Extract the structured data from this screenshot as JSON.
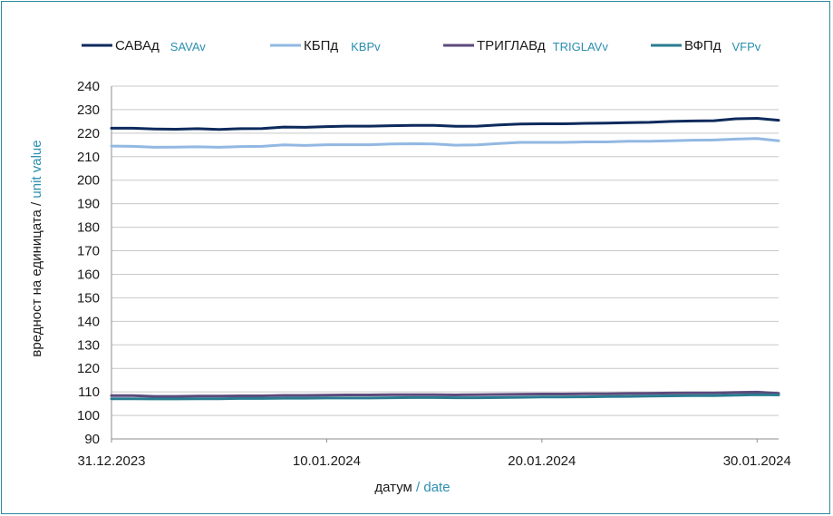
{
  "chart_data": {
    "type": "line",
    "xlabel": {
      "primary": "датум",
      "separator": " / ",
      "secondary": "date"
    },
    "ylabel": {
      "primary": "вредност на единицата",
      "separator": " / ",
      "secondary": "unit value"
    },
    "ylim": [
      90,
      240
    ],
    "yticks": [
      90,
      100,
      110,
      120,
      130,
      140,
      150,
      160,
      170,
      180,
      190,
      200,
      210,
      220,
      230,
      240
    ],
    "xlim": [
      "31.12.2023",
      "31.01.2024"
    ],
    "xticks": [
      "31.12.2023",
      "10.01.2024",
      "20.01.2024",
      "30.01.2024"
    ],
    "grid": "horizontal",
    "legend": "top",
    "x": [
      "31.12.2023",
      "01.01.2024",
      "02.01.2024",
      "03.01.2024",
      "04.01.2024",
      "05.01.2024",
      "06.01.2024",
      "07.01.2024",
      "08.01.2024",
      "09.01.2024",
      "10.01.2024",
      "11.01.2024",
      "12.01.2024",
      "13.01.2024",
      "14.01.2024",
      "15.01.2024",
      "16.01.2024",
      "17.01.2024",
      "18.01.2024",
      "19.01.2024",
      "20.01.2024",
      "21.01.2024",
      "22.01.2024",
      "23.01.2024",
      "24.01.2024",
      "25.01.2024",
      "26.01.2024",
      "27.01.2024",
      "28.01.2024",
      "29.01.2024",
      "30.01.2024",
      "31.01.2024"
    ],
    "series": [
      {
        "name": "САВАд",
        "name_en": "SAVAv",
        "color": "#0d2a5c",
        "values": [
          222.1,
          222.1,
          221.8,
          221.7,
          221.9,
          221.6,
          221.9,
          222.0,
          222.6,
          222.5,
          222.8,
          223.0,
          223.0,
          223.2,
          223.3,
          223.3,
          222.9,
          223.0,
          223.5,
          223.9,
          224.0,
          224.0,
          224.2,
          224.3,
          224.5,
          224.6,
          225.0,
          225.2,
          225.3,
          226.1,
          226.3,
          225.5
        ]
      },
      {
        "name": "КБПд",
        "name_en": "KBPv",
        "color": "#92b8e2",
        "values": [
          214.5,
          214.4,
          214.0,
          214.1,
          214.2,
          214.0,
          214.3,
          214.4,
          215.0,
          214.8,
          215.1,
          215.1,
          215.1,
          215.4,
          215.5,
          215.4,
          214.9,
          215.0,
          215.6,
          216.1,
          216.1,
          216.1,
          216.3,
          216.3,
          216.6,
          216.6,
          216.8,
          217.0,
          217.1,
          217.5,
          217.7,
          216.8
        ]
      },
      {
        "name": "ТРИГЛАВд",
        "name_en": "TRIGLAVv",
        "color": "#5c4a7c",
        "values": [
          108.4,
          108.4,
          108.1,
          108.1,
          108.2,
          108.2,
          108.3,
          108.3,
          108.5,
          108.5,
          108.6,
          108.7,
          108.7,
          108.8,
          108.8,
          108.8,
          108.7,
          108.8,
          108.9,
          109.0,
          109.1,
          109.1,
          109.2,
          109.2,
          109.3,
          109.4,
          109.5,
          109.6,
          109.6,
          109.8,
          109.9,
          109.4
        ]
      },
      {
        "name": "ВФПд",
        "name_en": "VFPv",
        "color": "#2a7c90",
        "values": [
          107.1,
          107.1,
          107.0,
          107.0,
          107.1,
          107.1,
          107.2,
          107.2,
          107.3,
          107.3,
          107.4,
          107.4,
          107.4,
          107.5,
          107.6,
          107.6,
          107.5,
          107.5,
          107.6,
          107.7,
          107.8,
          107.8,
          107.9,
          108.0,
          108.1,
          108.2,
          108.3,
          108.4,
          108.4,
          108.6,
          108.8,
          108.7
        ]
      }
    ]
  }
}
